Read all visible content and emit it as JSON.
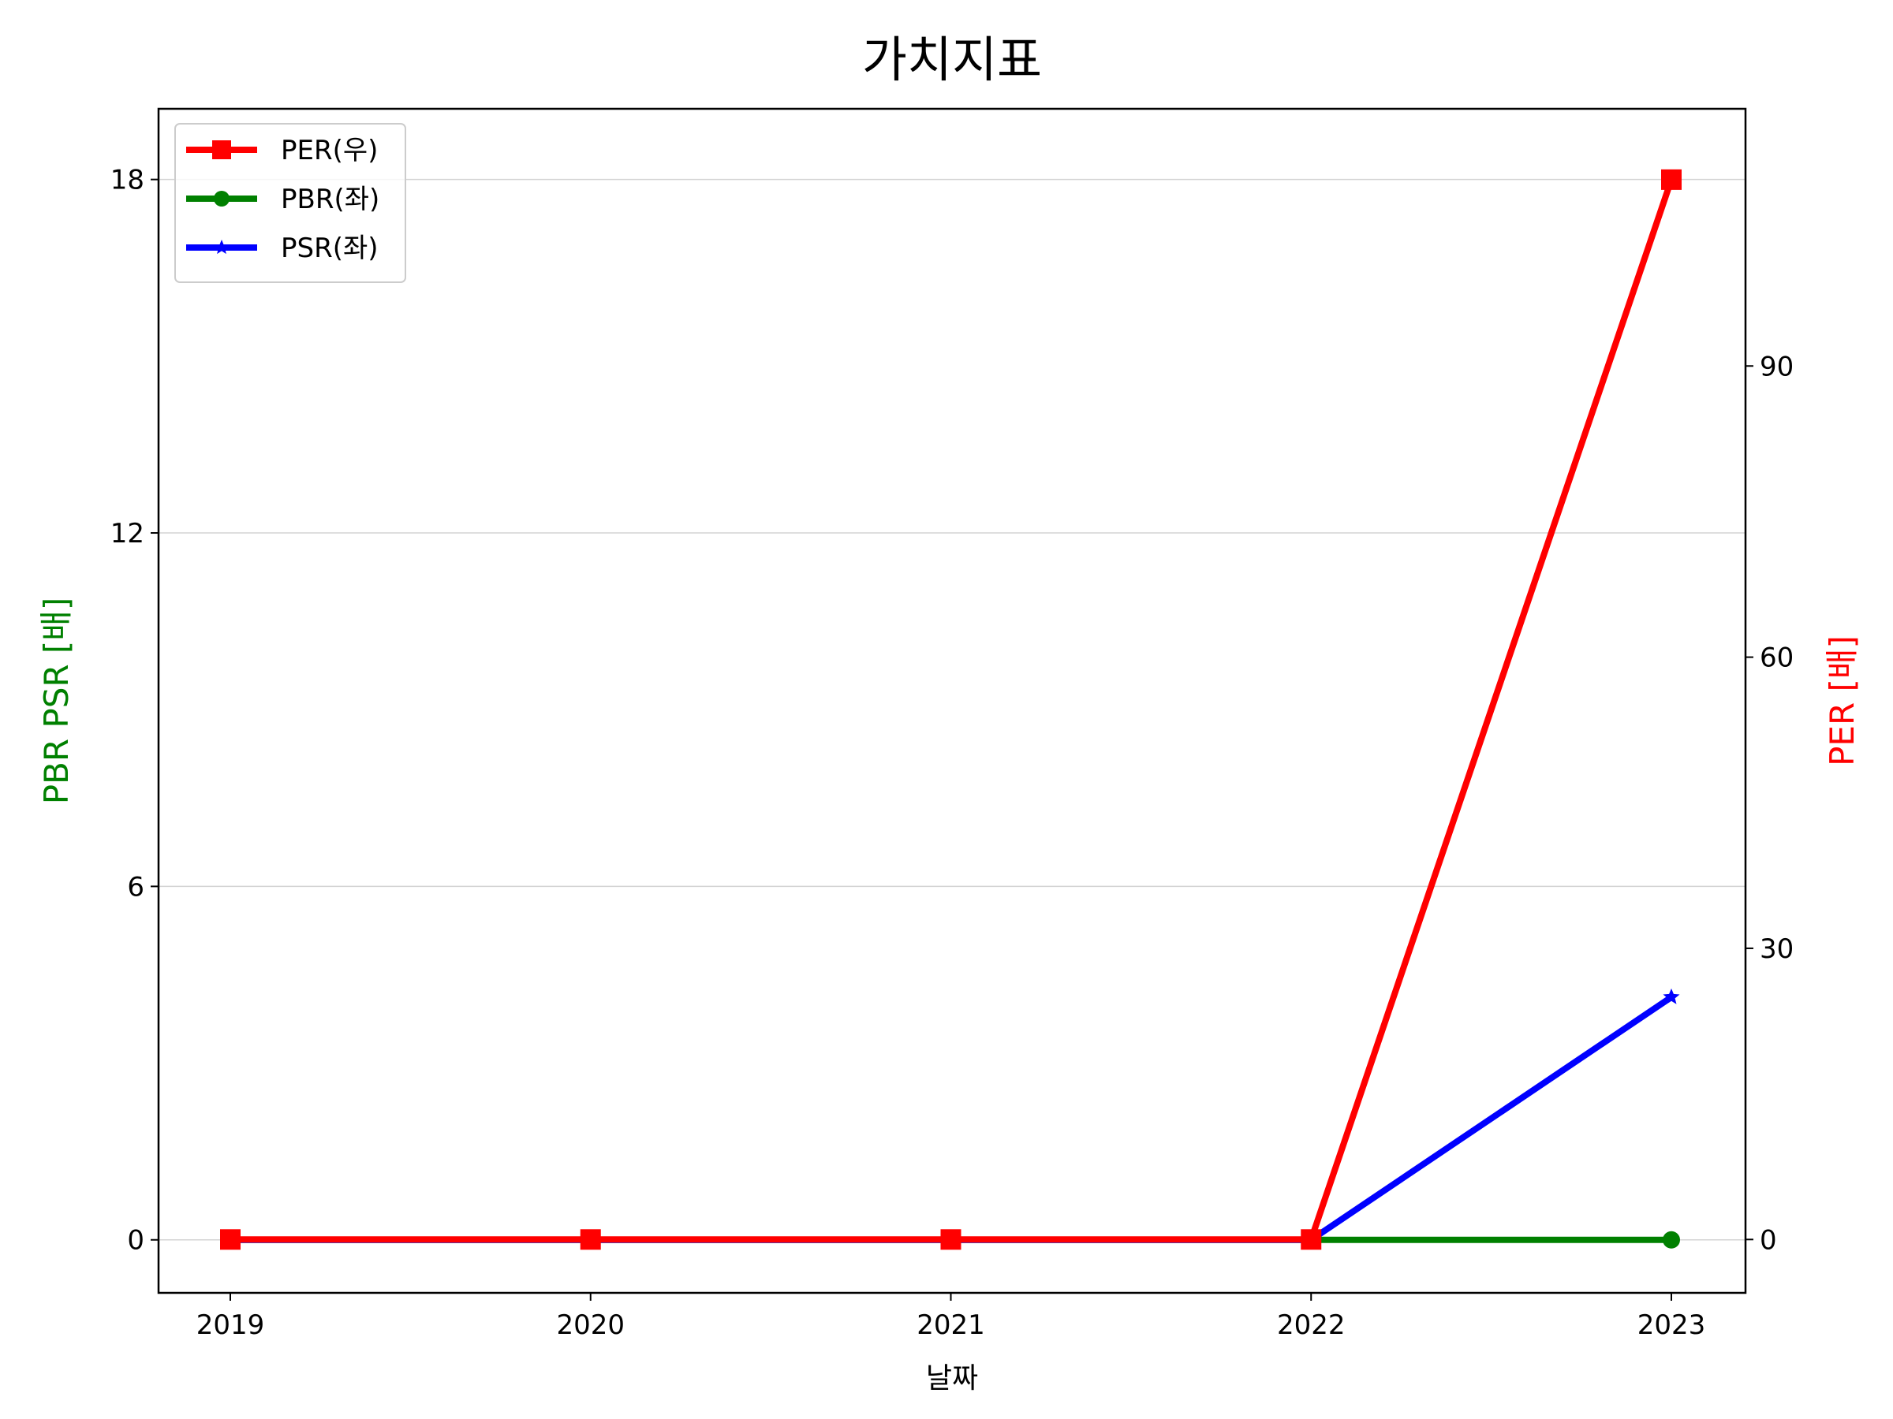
{
  "chart_data": {
    "type": "line",
    "title": "가치지표",
    "xlabel": "날짜",
    "ylabel_left": "PBR PSR [배]",
    "ylabel_right": "PER [배]",
    "ylabel_left_color": "#008000",
    "ylabel_right_color": "#ff0000",
    "categories": [
      "2019",
      "2020",
      "2021",
      "2022",
      "2023"
    ],
    "ylim_left": [
      -0.9,
      19.2
    ],
    "ylim_right": [
      -5.5,
      116.5
    ],
    "yticks_left": [
      0,
      6,
      12,
      18
    ],
    "yticks_right": [
      0,
      30,
      60,
      90
    ],
    "grid": "horizontal (left axis)",
    "legend_position": "upper-left",
    "series": [
      {
        "name": "PER(우)",
        "axis": "right",
        "color": "#ff0000",
        "marker": "square",
        "values": [
          0,
          0,
          0,
          0,
          109.2
        ]
      },
      {
        "name": "PBR(좌)",
        "axis": "left",
        "color": "#008000",
        "marker": "circle",
        "values": [
          0,
          0,
          0,
          0,
          0
        ]
      },
      {
        "name": "PSR(좌)",
        "axis": "left",
        "color": "#0000ff",
        "marker": "star",
        "values": [
          0,
          0,
          0,
          0,
          4.12
        ]
      }
    ]
  }
}
